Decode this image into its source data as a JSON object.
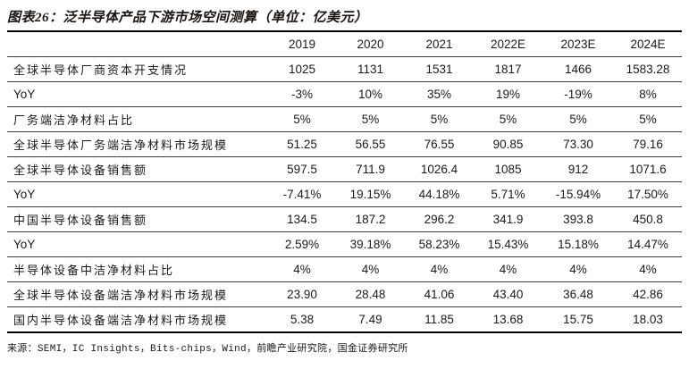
{
  "title": "图表26：泛半导体产品下游市场空间测算（单位：亿美元）",
  "source": "来源：SEMI，IC Insights，Bits-chips，Wind，前瞻产业研究院，国金证券研究所",
  "colors": {
    "background": "#ffffff",
    "text": "#1a1a1a",
    "rule_thick": "#000000",
    "rule_thin": "#3c3c3c"
  },
  "table": {
    "columns": [
      "2019",
      "2020",
      "2021",
      "2022E",
      "2023E",
      "2024E"
    ],
    "rows": [
      {
        "label": "全球半导体厂商资本开支情况",
        "values": [
          "1025",
          "1131",
          "1531",
          "1817",
          "1466",
          "1583.28"
        ]
      },
      {
        "label": "YoY",
        "values": [
          "-3%",
          "10%",
          "35%",
          "19%",
          "-19%",
          "8%"
        ]
      },
      {
        "label": "厂务端洁净材料占比",
        "values": [
          "5%",
          "5%",
          "5%",
          "5%",
          "5%",
          "5%"
        ]
      },
      {
        "label": "全球半导体厂务端洁净材料市场规模",
        "values": [
          "51.25",
          "56.55",
          "76.55",
          "90.85",
          "73.30",
          "79.16"
        ]
      },
      {
        "label": "全球半导体设备销售额",
        "values": [
          "597.5",
          "711.9",
          "1026.4",
          "1085",
          "912",
          "1071.6"
        ]
      },
      {
        "label": "YoY",
        "values": [
          "-7.41%",
          "19.15%",
          "44.18%",
          "5.71%",
          "-15.94%",
          "17.50%"
        ]
      },
      {
        "label": "中国半导体设备销售额",
        "values": [
          "134.5",
          "187.2",
          "296.2",
          "341.9",
          "393.8",
          "450.8"
        ]
      },
      {
        "label": "YoY",
        "values": [
          "2.59%",
          "39.18%",
          "58.23%",
          "15.43%",
          "15.18%",
          "14.47%"
        ]
      },
      {
        "label": "半导体设备中洁净材料占比",
        "values": [
          "4%",
          "4%",
          "4%",
          "4%",
          "4%",
          "4%"
        ]
      },
      {
        "label": "全球半导体设备端洁净材料市场规模",
        "values": [
          "23.90",
          "28.48",
          "41.06",
          "43.40",
          "36.48",
          "42.86"
        ]
      },
      {
        "label": "国内半导体设备端洁净材料市场规模",
        "values": [
          "5.38",
          "7.49",
          "11.85",
          "13.68",
          "15.75",
          "18.03"
        ]
      }
    ]
  }
}
